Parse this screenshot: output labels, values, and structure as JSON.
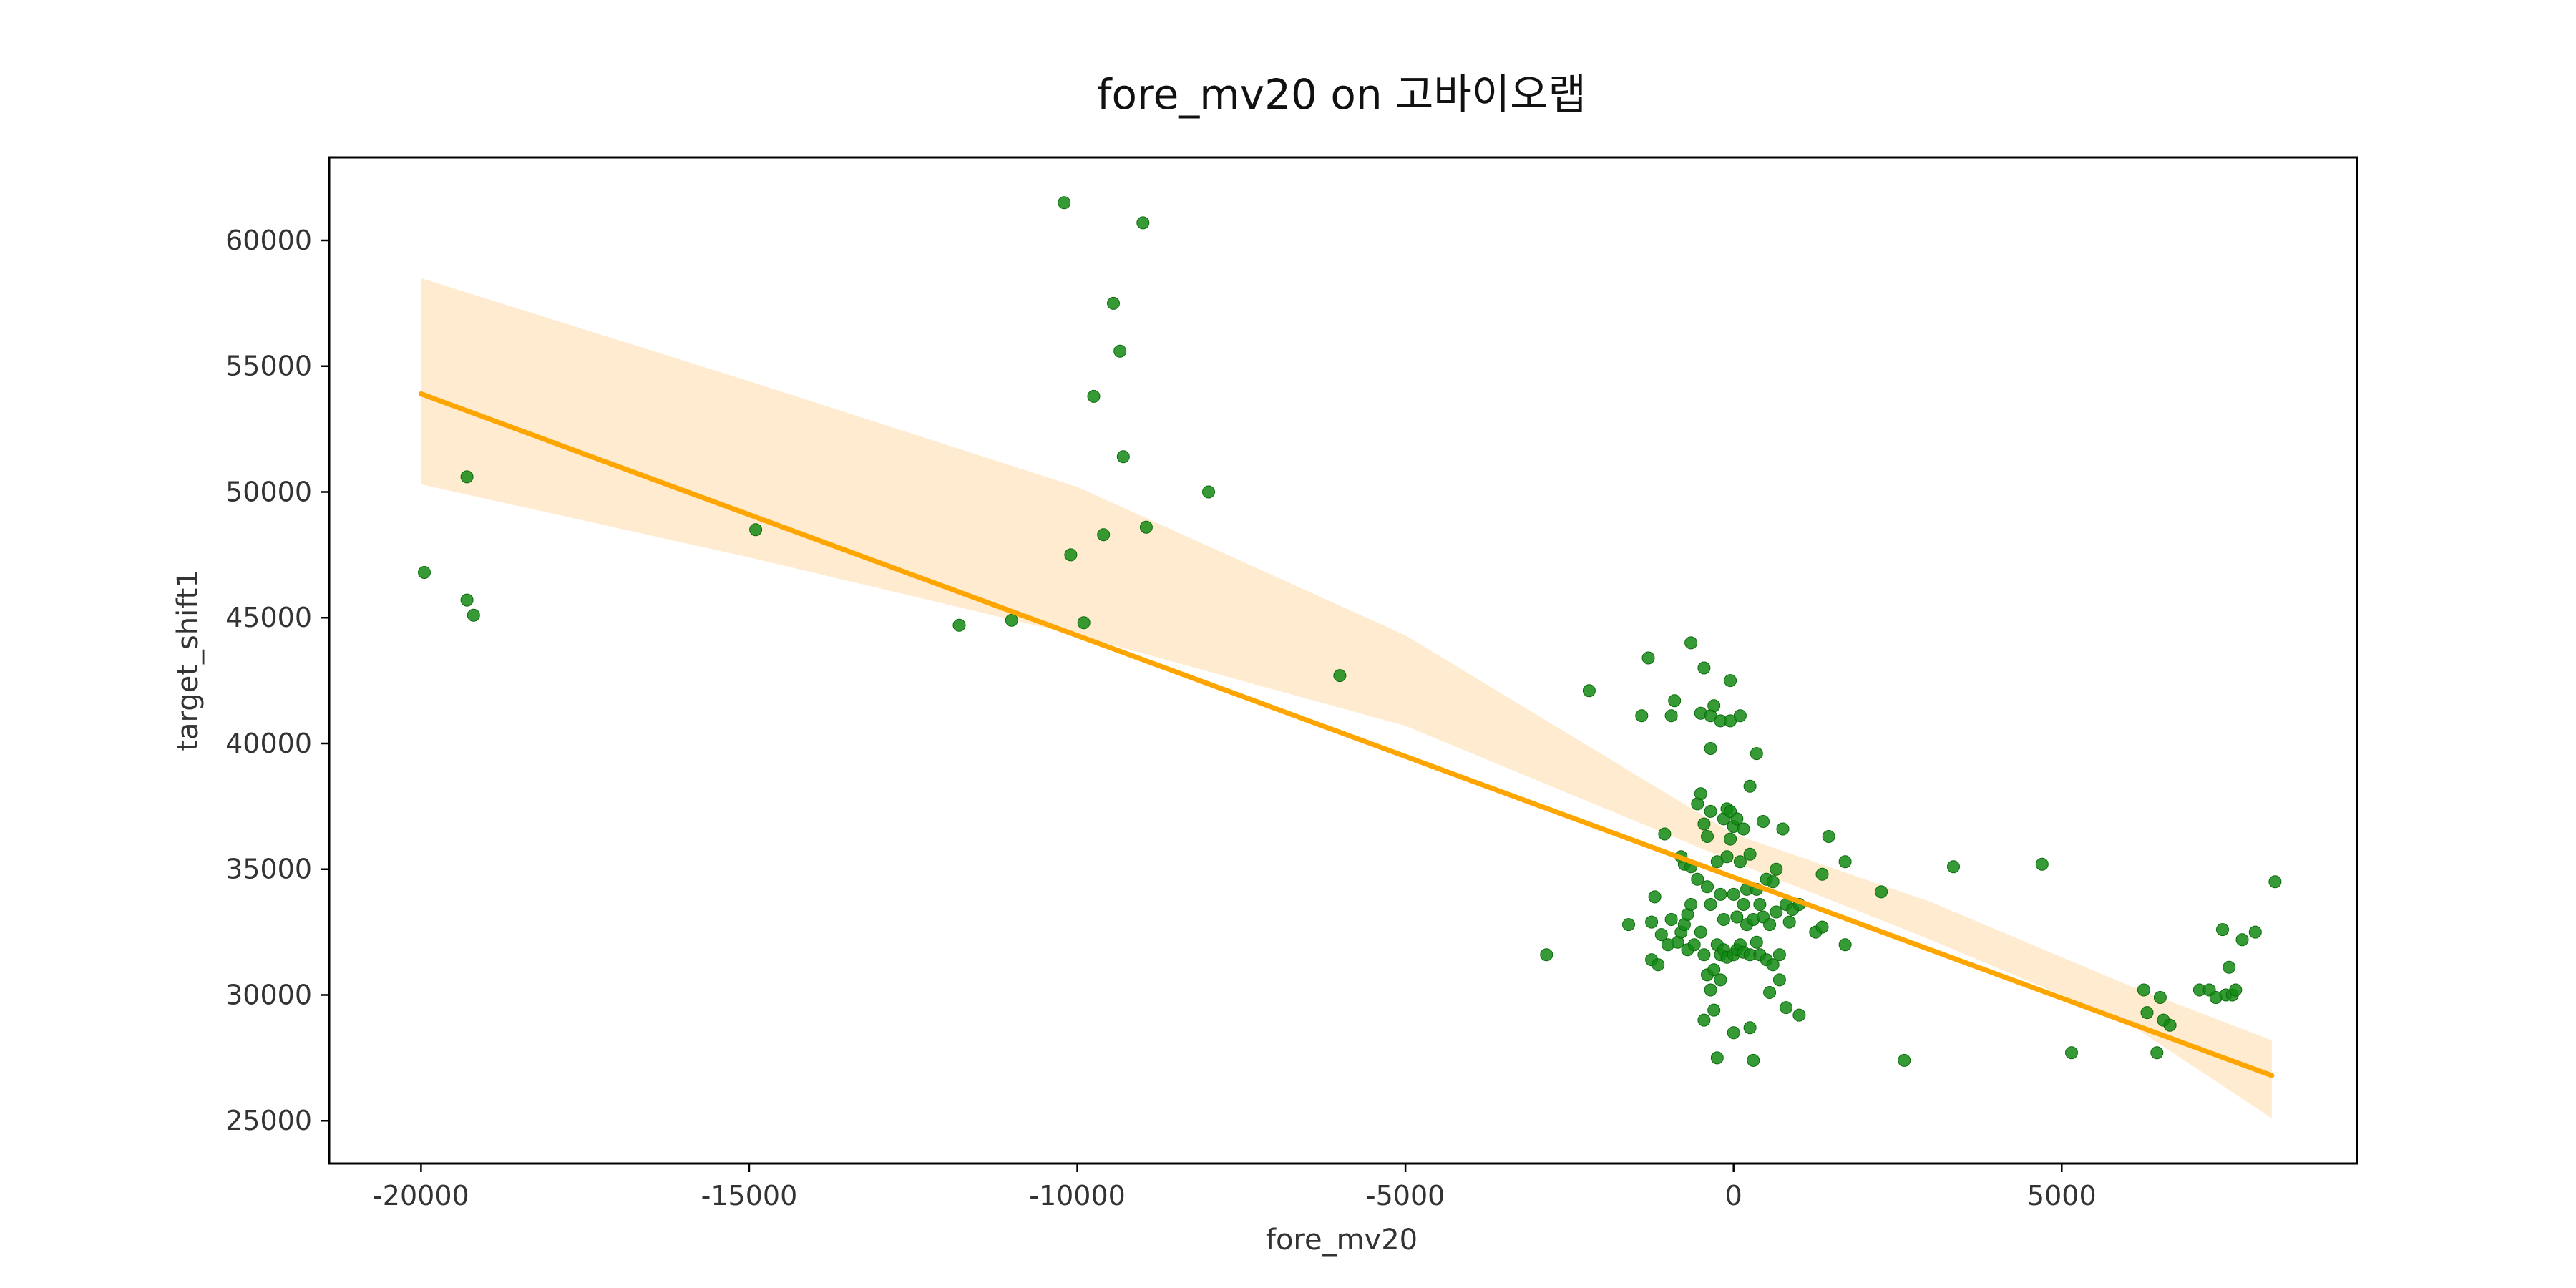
{
  "chart_data": {
    "type": "scatter",
    "title": "fore_mv20 on 고바이오랩",
    "xlabel": "fore_mv20",
    "ylabel": "target_shift1",
    "xlim": [
      -21400,
      9500
    ],
    "ylim": [
      23300,
      63300
    ],
    "x_ticks": [
      -20000,
      -15000,
      -10000,
      -5000,
      0,
      5000
    ],
    "x_tick_labels": [
      "-20000",
      "-15000",
      "-10000",
      "-5000",
      "0",
      "5000"
    ],
    "y_ticks": [
      25000,
      30000,
      35000,
      40000,
      45000,
      50000,
      55000,
      60000
    ],
    "y_tick_labels": [
      "25000",
      "30000",
      "35000",
      "40000",
      "45000",
      "50000",
      "55000",
      "60000"
    ],
    "grid": false,
    "colors": {
      "points": "#138a13",
      "regression_line": "#ffa500",
      "confidence_band": "#ffe8c7",
      "frame": "#000000"
    },
    "regression": {
      "x": [
        -20000,
        8200
      ],
      "y": [
        53900,
        26800
      ]
    },
    "confidence_band": {
      "x": [
        -20000,
        -15000,
        -10000,
        -5000,
        0,
        3000,
        6000,
        8200
      ],
      "lower": [
        50300,
        47400,
        44300,
        40700,
        35300,
        32200,
        28900,
        25100
      ],
      "upper": [
        58500,
        54400,
        50200,
        44300,
        36400,
        33700,
        30400,
        28200
      ]
    },
    "points": [
      {
        "x": -19950,
        "y": 46800
      },
      {
        "x": -19300,
        "y": 50600
      },
      {
        "x": -19300,
        "y": 45700
      },
      {
        "x": -19200,
        "y": 45100
      },
      {
        "x": -14900,
        "y": 48500
      },
      {
        "x": -11800,
        "y": 44700
      },
      {
        "x": -11000,
        "y": 44900
      },
      {
        "x": -10200,
        "y": 61500
      },
      {
        "x": -10100,
        "y": 47500
      },
      {
        "x": -9900,
        "y": 44800
      },
      {
        "x": -9750,
        "y": 53800
      },
      {
        "x": -9600,
        "y": 48300
      },
      {
        "x": -9450,
        "y": 57500
      },
      {
        "x": -9350,
        "y": 55600
      },
      {
        "x": -9300,
        "y": 51400
      },
      {
        "x": -9000,
        "y": 60700
      },
      {
        "x": -8950,
        "y": 48600
      },
      {
        "x": -8000,
        "y": 50000
      },
      {
        "x": -6000,
        "y": 42700
      },
      {
        "x": -2850,
        "y": 31600
      },
      {
        "x": -2200,
        "y": 42100
      },
      {
        "x": -1600,
        "y": 32800
      },
      {
        "x": -1400,
        "y": 41100
      },
      {
        "x": -1300,
        "y": 43400
      },
      {
        "x": -1250,
        "y": 31400
      },
      {
        "x": -1250,
        "y": 32900
      },
      {
        "x": -1200,
        "y": 33900
      },
      {
        "x": -1150,
        "y": 31200
      },
      {
        "x": -1100,
        "y": 32400
      },
      {
        "x": -1050,
        "y": 36400
      },
      {
        "x": -1000,
        "y": 32000
      },
      {
        "x": -950,
        "y": 41100
      },
      {
        "x": -950,
        "y": 33000
      },
      {
        "x": -900,
        "y": 41700
      },
      {
        "x": -850,
        "y": 32100
      },
      {
        "x": -800,
        "y": 35500
      },
      {
        "x": -800,
        "y": 32500
      },
      {
        "x": -750,
        "y": 35200
      },
      {
        "x": -750,
        "y": 32800
      },
      {
        "x": -700,
        "y": 33200
      },
      {
        "x": -700,
        "y": 31800
      },
      {
        "x": -650,
        "y": 44000
      },
      {
        "x": -650,
        "y": 35100
      },
      {
        "x": -650,
        "y": 33600
      },
      {
        "x": -600,
        "y": 32000
      },
      {
        "x": -550,
        "y": 37600
      },
      {
        "x": -550,
        "y": 34600
      },
      {
        "x": -500,
        "y": 41200
      },
      {
        "x": -500,
        "y": 38000
      },
      {
        "x": -500,
        "y": 32500
      },
      {
        "x": -450,
        "y": 43000
      },
      {
        "x": -450,
        "y": 36800
      },
      {
        "x": -450,
        "y": 31600
      },
      {
        "x": -450,
        "y": 29000
      },
      {
        "x": -400,
        "y": 36300
      },
      {
        "x": -400,
        "y": 34300
      },
      {
        "x": -400,
        "y": 30800
      },
      {
        "x": -350,
        "y": 41100
      },
      {
        "x": -350,
        "y": 39800
      },
      {
        "x": -350,
        "y": 37300
      },
      {
        "x": -350,
        "y": 33600
      },
      {
        "x": -350,
        "y": 30200
      },
      {
        "x": -300,
        "y": 41500
      },
      {
        "x": -300,
        "y": 31000
      },
      {
        "x": -300,
        "y": 29400
      },
      {
        "x": -250,
        "y": 27500
      },
      {
        "x": -250,
        "y": 35300
      },
      {
        "x": -250,
        "y": 32000
      },
      {
        "x": -200,
        "y": 40900
      },
      {
        "x": -200,
        "y": 34000
      },
      {
        "x": -200,
        "y": 31600
      },
      {
        "x": -200,
        "y": 30600
      },
      {
        "x": -150,
        "y": 37000
      },
      {
        "x": -150,
        "y": 33000
      },
      {
        "x": -150,
        "y": 31800
      },
      {
        "x": -100,
        "y": 37400
      },
      {
        "x": -100,
        "y": 35500
      },
      {
        "x": -100,
        "y": 31500
      },
      {
        "x": -50,
        "y": 42500
      },
      {
        "x": -50,
        "y": 40900
      },
      {
        "x": -50,
        "y": 37300
      },
      {
        "x": -50,
        "y": 36200
      },
      {
        "x": 0,
        "y": 36700
      },
      {
        "x": 0,
        "y": 34000
      },
      {
        "x": 0,
        "y": 31600
      },
      {
        "x": 0,
        "y": 28500
      },
      {
        "x": 50,
        "y": 37000
      },
      {
        "x": 50,
        "y": 33100
      },
      {
        "x": 50,
        "y": 31800
      },
      {
        "x": 100,
        "y": 41100
      },
      {
        "x": 100,
        "y": 35300
      },
      {
        "x": 100,
        "y": 32000
      },
      {
        "x": 150,
        "y": 36600
      },
      {
        "x": 150,
        "y": 33600
      },
      {
        "x": 150,
        "y": 31700
      },
      {
        "x": 200,
        "y": 34200
      },
      {
        "x": 200,
        "y": 32800
      },
      {
        "x": 250,
        "y": 38300
      },
      {
        "x": 250,
        "y": 35600
      },
      {
        "x": 250,
        "y": 31600
      },
      {
        "x": 250,
        "y": 28700
      },
      {
        "x": 300,
        "y": 33000
      },
      {
        "x": 300,
        "y": 27400
      },
      {
        "x": 350,
        "y": 39600
      },
      {
        "x": 350,
        "y": 34200
      },
      {
        "x": 350,
        "y": 32100
      },
      {
        "x": 400,
        "y": 33600
      },
      {
        "x": 400,
        "y": 31600
      },
      {
        "x": 450,
        "y": 36900
      },
      {
        "x": 450,
        "y": 33100
      },
      {
        "x": 500,
        "y": 34600
      },
      {
        "x": 500,
        "y": 31400
      },
      {
        "x": 550,
        "y": 32800
      },
      {
        "x": 550,
        "y": 30100
      },
      {
        "x": 600,
        "y": 34500
      },
      {
        "x": 600,
        "y": 31200
      },
      {
        "x": 650,
        "y": 35000
      },
      {
        "x": 650,
        "y": 33300
      },
      {
        "x": 700,
        "y": 31600
      },
      {
        "x": 700,
        "y": 30600
      },
      {
        "x": 750,
        "y": 36600
      },
      {
        "x": 800,
        "y": 33600
      },
      {
        "x": 800,
        "y": 29500
      },
      {
        "x": 850,
        "y": 32900
      },
      {
        "x": 900,
        "y": 33400
      },
      {
        "x": 1000,
        "y": 33600
      },
      {
        "x": 1000,
        "y": 29200
      },
      {
        "x": 1250,
        "y": 32500
      },
      {
        "x": 1350,
        "y": 32700
      },
      {
        "x": 1350,
        "y": 34800
      },
      {
        "x": 1450,
        "y": 36300
      },
      {
        "x": 1700,
        "y": 32000
      },
      {
        "x": 1700,
        "y": 35300
      },
      {
        "x": 2250,
        "y": 34100
      },
      {
        "x": 2600,
        "y": 27400
      },
      {
        "x": 3350,
        "y": 35100
      },
      {
        "x": 4700,
        "y": 35200
      },
      {
        "x": 5150,
        "y": 27700
      },
      {
        "x": 6250,
        "y": 30200
      },
      {
        "x": 6300,
        "y": 29300
      },
      {
        "x": 6450,
        "y": 27700
      },
      {
        "x": 6500,
        "y": 29900
      },
      {
        "x": 6550,
        "y": 29000
      },
      {
        "x": 6650,
        "y": 28800
      },
      {
        "x": 7100,
        "y": 30200
      },
      {
        "x": 7250,
        "y": 30200
      },
      {
        "x": 7350,
        "y": 29900
      },
      {
        "x": 7450,
        "y": 32600
      },
      {
        "x": 7500,
        "y": 30000
      },
      {
        "x": 7550,
        "y": 31100
      },
      {
        "x": 7600,
        "y": 30000
      },
      {
        "x": 7650,
        "y": 30200
      },
      {
        "x": 7750,
        "y": 32200
      },
      {
        "x": 7950,
        "y": 32500
      },
      {
        "x": 8250,
        "y": 34500
      }
    ]
  }
}
